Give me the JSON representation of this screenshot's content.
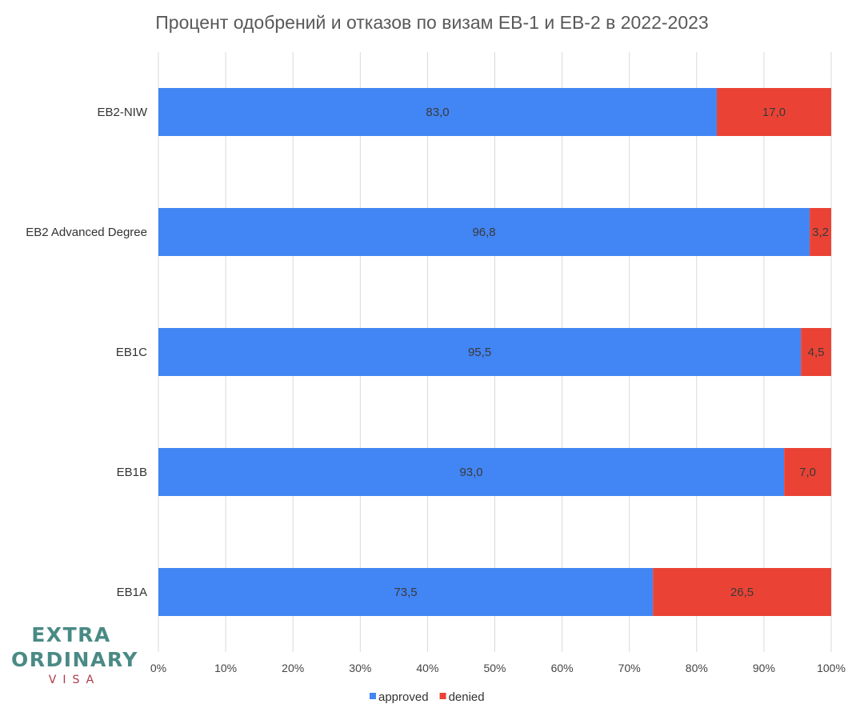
{
  "chart_data": {
    "type": "bar",
    "orientation": "horizontal",
    "stacked": "percent",
    "title": "Процент одобрений и отказов по визам EB-1 и EB-2 в 2022-2023",
    "categories": [
      "EB2-NIW",
      "EB2 Advanced Degree",
      "EB1C",
      "EB1B",
      "EB1A"
    ],
    "series": [
      {
        "name": "approved",
        "color": "#4285f4",
        "values": [
          83.0,
          96.8,
          95.5,
          93.0,
          73.5
        ],
        "labels": [
          "83,0",
          "96,8",
          "95,5",
          "93,0",
          "73,5"
        ]
      },
      {
        "name": "denied",
        "color": "#ea4335",
        "values": [
          17.0,
          3.2,
          4.5,
          7.0,
          26.5
        ],
        "labels": [
          "17,0",
          "3,2",
          "4,5",
          "7,0",
          "26,5"
        ]
      }
    ],
    "xlim": [
      0,
      100
    ],
    "xticks": [
      "0%",
      "10%",
      "20%",
      "30%",
      "40%",
      "50%",
      "60%",
      "70%",
      "80%",
      "90%",
      "100%"
    ],
    "grid": true,
    "legend": "bottom"
  },
  "logo": {
    "line1": "EXTRA",
    "line2": "ORDINARY",
    "line3": "VISA"
  }
}
